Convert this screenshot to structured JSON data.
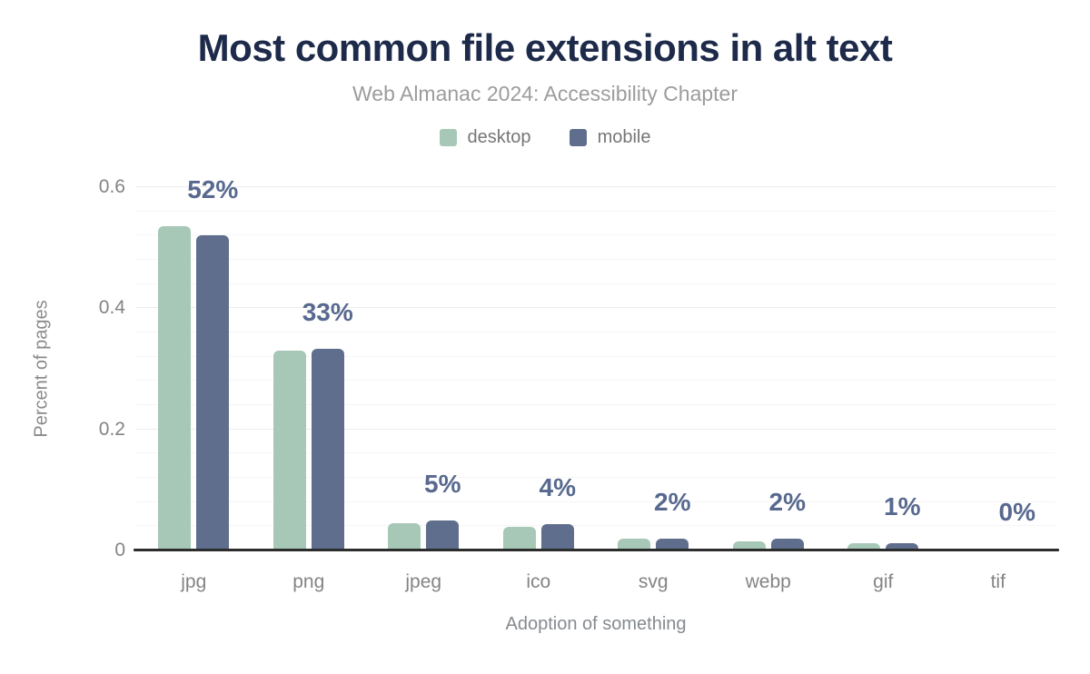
{
  "header": {
    "title": "Most common file extensions in alt text",
    "subtitle": "Web Almanac 2024: Accessibility Chapter"
  },
  "colors": {
    "desktop_bar": "#a7c8b6",
    "mobile_bar": "#5f6e8c",
    "title_text": "#1d2a4a",
    "value_label_text": "#58698f",
    "axis_text": "#848484",
    "axis_line": "#2d2d2d"
  },
  "chart_data": {
    "type": "bar",
    "title": "Most common file extensions in alt text",
    "subtitle": "Web Almanac 2024: Accessibility Chapter",
    "xlabel": "Adoption of something",
    "ylabel": "Percent of pages",
    "categories": [
      "jpg",
      "png",
      "jpeg",
      "ico",
      "svg",
      "webp",
      "gif",
      "tif"
    ],
    "series": [
      {
        "name": "desktop",
        "color": "#a7c8b6",
        "values": [
          0.535,
          0.33,
          0.045,
          0.039,
          0.019,
          0.015,
          0.012,
          0.0005
        ]
      },
      {
        "name": "mobile",
        "color": "#5f6e8c",
        "values": [
          0.52,
          0.333,
          0.05,
          0.043,
          0.019,
          0.019,
          0.012,
          0.003
        ]
      }
    ],
    "value_labels": [
      "52%",
      "33%",
      "5%",
      "4%",
      "2%",
      "2%",
      "1%",
      "0%"
    ],
    "ylim": [
      0,
      0.6
    ],
    "yticks": [
      0,
      0.2,
      0.4,
      0.6
    ],
    "ytick_labels": [
      "0",
      "0.2",
      "0.4",
      "0.6"
    ],
    "minor_grid_step": 0.04,
    "grid": true,
    "legend_position": "top",
    "legend": [
      "desktop",
      "mobile"
    ]
  }
}
